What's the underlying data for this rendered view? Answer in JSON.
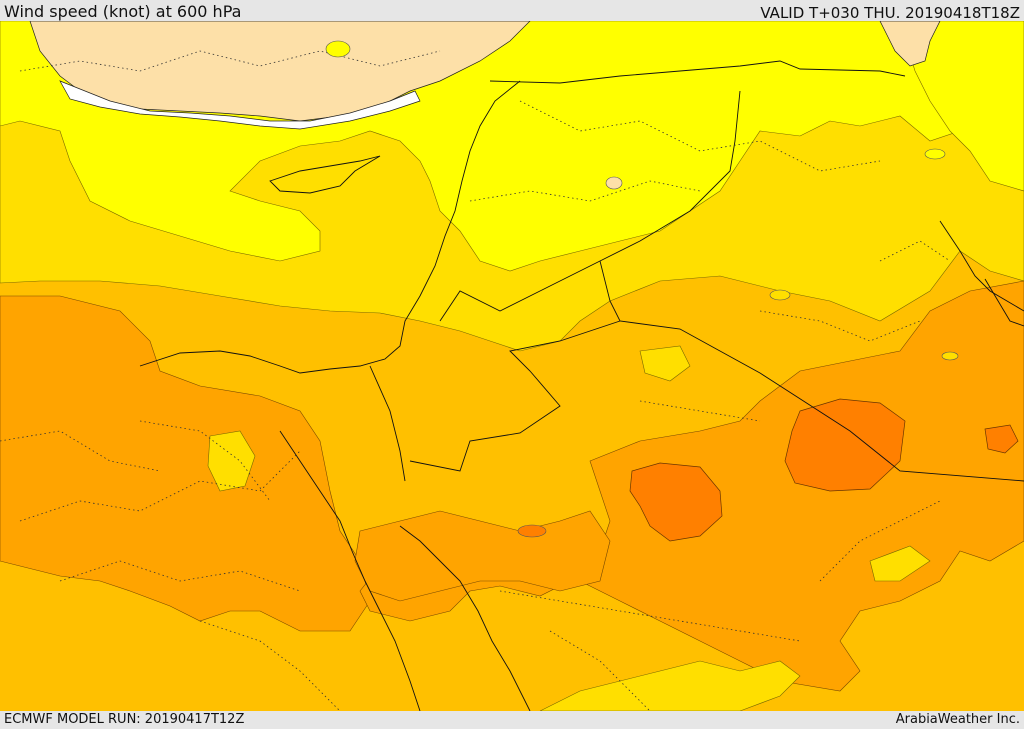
{
  "header": {
    "title": "Wind speed (knot) at 600 hPa",
    "valid_time": "VALID T+030 THU. 20190418T18Z"
  },
  "footer": {
    "model_run": "ECMWF MODEL RUN: 20190417T12Z",
    "credit": "ArabiaWeather Inc."
  },
  "map": {
    "region": "Eastern Mediterranean and Middle East",
    "colors": {
      "land_outside": "#fde0a8",
      "no_data": "#ffffff",
      "band_1": "#ffff00",
      "band_2": "#ffdf00",
      "band_3": "#ffc000",
      "band_4": "#ffa400",
      "band_5": "#ff8000",
      "coastline": "#000000"
    }
  }
}
